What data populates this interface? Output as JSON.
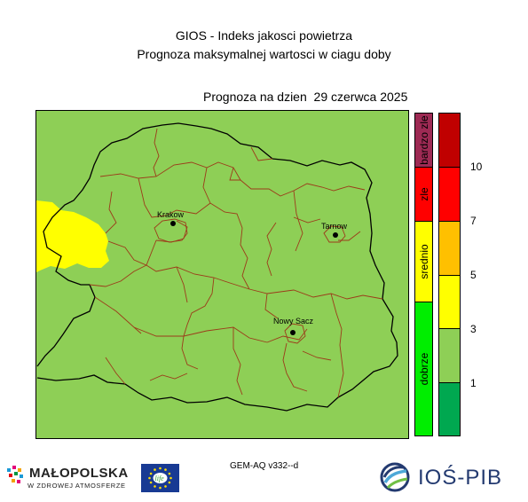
{
  "header": {
    "title_line1": "GIOS - Indeks jakosci powietrza",
    "title_line2": "Prognoza maksymalnej wartosci w ciagu doby",
    "forecast_date": "Prognoza na dzien  29 czerwca 2025"
  },
  "map": {
    "region_color": "#8ecf56",
    "hotspot_color": "#ffff00",
    "hotspot_category": "srednio",
    "voivodeship_border_color": "#000000",
    "district_border_color": "#9c3b1a",
    "cities": [
      {
        "name": "Krakow"
      },
      {
        "name": "Tarnow"
      },
      {
        "name": "Nowy Sacz"
      }
    ]
  },
  "legend": {
    "index_categories": [
      {
        "label": "bardzo zle",
        "color": "#9e2a54"
      },
      {
        "label": "zle",
        "color": "#ff0000"
      },
      {
        "label": "srednio",
        "color": "#ffff00"
      },
      {
        "label": "dobrze",
        "color": "#00ee00"
      }
    ],
    "value_bands": [
      {
        "color": "#c00000"
      },
      {
        "color": "#ff0000"
      },
      {
        "color": "#ffc000"
      },
      {
        "color": "#ffff00"
      },
      {
        "color": "#8ecf56"
      },
      {
        "color": "#00a850"
      }
    ],
    "ticks": [
      "10",
      "7",
      "5",
      "3",
      "1"
    ]
  },
  "footer": {
    "model_label": "GEM-AQ v332--d",
    "logo_malopolska_name": "MAŁOPOLSKA",
    "logo_malopolska_tagline": "W ZDROWEJ ATMOSFERZE",
    "logo_life_text": "life",
    "logo_ios_text": "IOŚ-PIB"
  }
}
